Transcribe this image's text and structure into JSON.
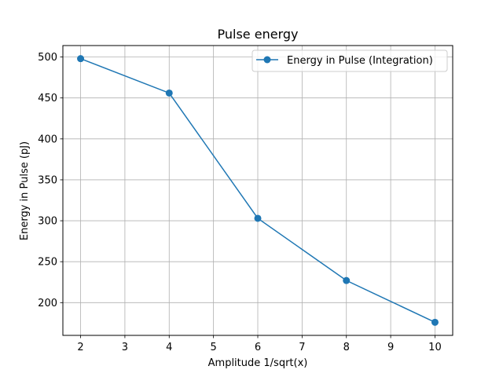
{
  "chart_data": {
    "type": "line",
    "title": "Pulse energy",
    "xlabel": "Amplitude 1/sqrt(x)",
    "ylabel": "Energy in Pulse (pJ)",
    "x": [
      2,
      4,
      6,
      8,
      10
    ],
    "series": [
      {
        "name": "Energy in Pulse (Integration)",
        "values": [
          498,
          456,
          303,
          227,
          176
        ],
        "color": "#1f77b4",
        "marker": "circle"
      }
    ],
    "xlim": [
      1.6,
      10.4
    ],
    "ylim": [
      160,
      514
    ],
    "xticks": [
      2,
      3,
      4,
      5,
      6,
      7,
      8,
      9,
      10
    ],
    "yticks": [
      200,
      250,
      300,
      350,
      400,
      450,
      500
    ],
    "grid": true,
    "legend_position": "top-right"
  }
}
